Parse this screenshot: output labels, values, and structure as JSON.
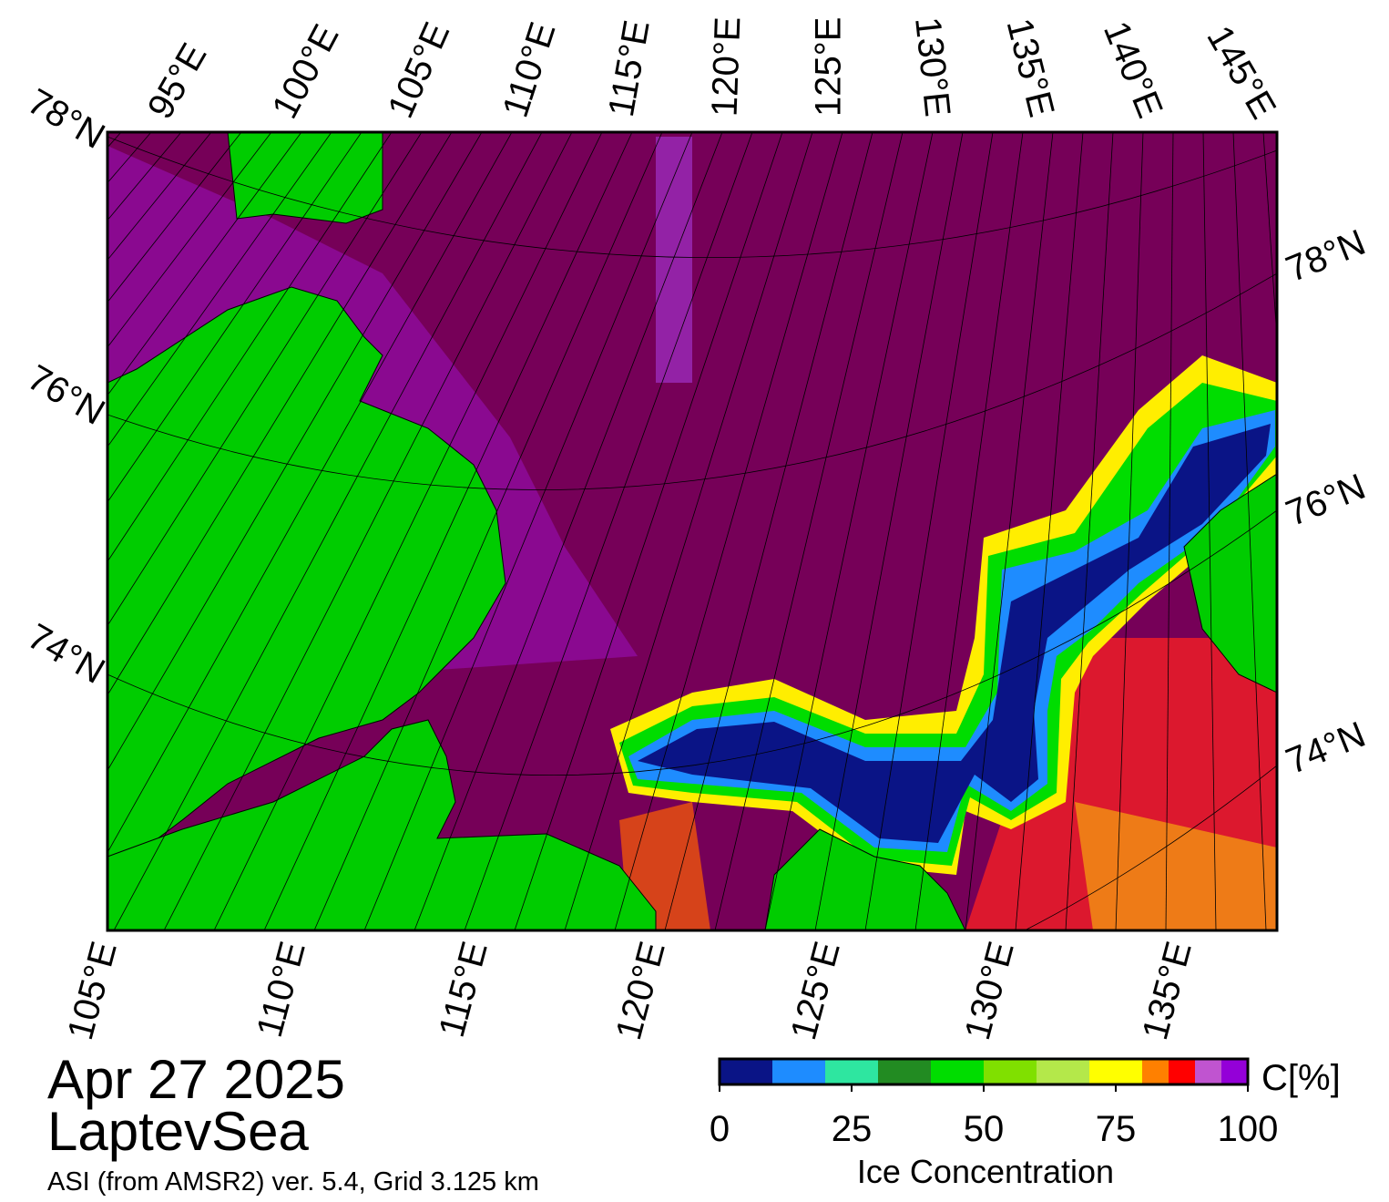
{
  "map": {
    "top_lon_labels": [
      "95°E",
      "100°E",
      "105°E",
      "110°E",
      "115°E",
      "120°E",
      "125°E",
      "130°E",
      "135°E",
      "140°E",
      "145°E"
    ],
    "bottom_lon_labels": [
      "105°E",
      "110°E",
      "115°E",
      "120°E",
      "125°E",
      "130°E",
      "135°E"
    ],
    "left_lat_labels": [
      "78°N",
      "76°N",
      "74°N"
    ],
    "right_lat_labels": [
      "78°N",
      "76°N",
      "74°N"
    ]
  },
  "caption": {
    "date": "Apr 27 2025",
    "region": "LaptevSea",
    "source": "ASI (from AMSR2) ver. 5.4,  Grid 3.125 km"
  },
  "colorbar": {
    "bins": [
      0,
      10,
      20,
      30,
      40,
      50,
      60,
      70,
      80,
      85,
      90,
      95,
      100
    ],
    "colors": [
      "#0a1486",
      "#1e8cff",
      "#2ee6a0",
      "#228b22",
      "#00dd00",
      "#80e000",
      "#b4e84a",
      "#ffff00",
      "#ff8000",
      "#ff0000",
      "#c054d0",
      "#9400d8"
    ],
    "ticks": [
      0,
      25,
      50,
      75,
      100
    ],
    "unit": "C[%]",
    "label": "Ice Concentration"
  }
}
